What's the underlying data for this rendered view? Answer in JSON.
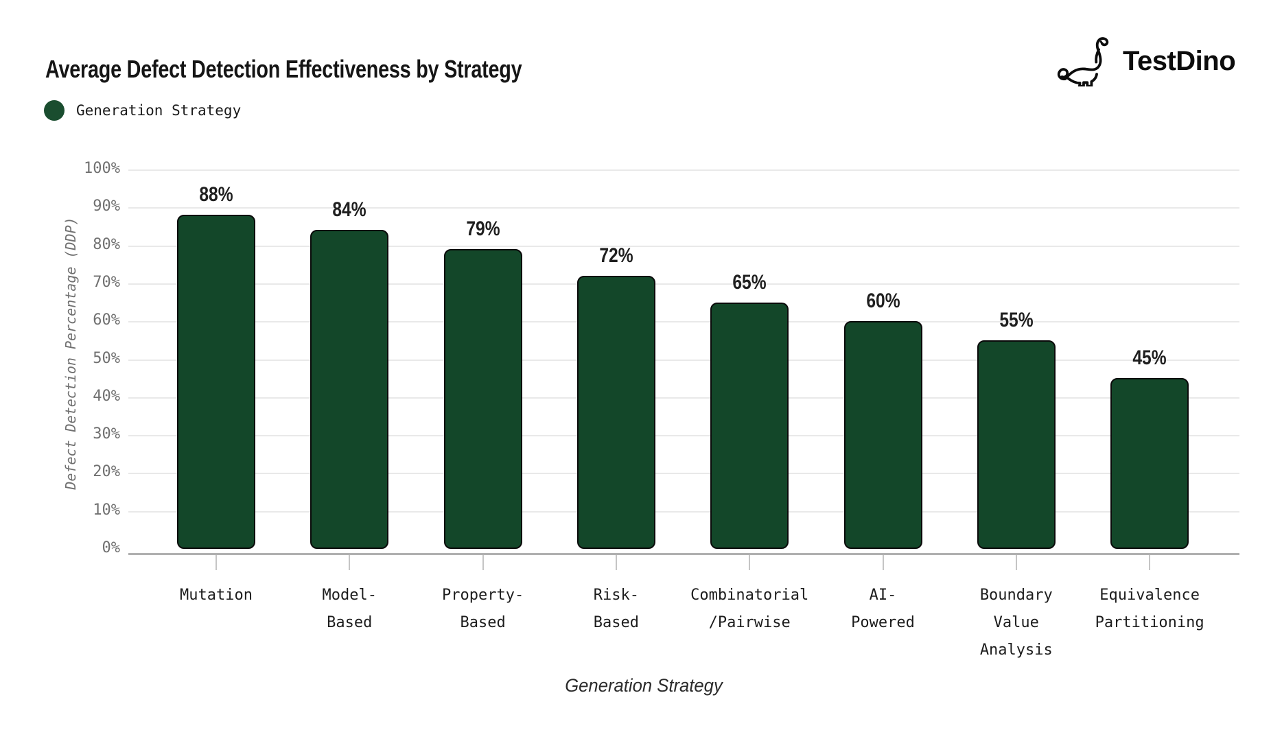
{
  "header": {
    "title": "Average Defect Detection Effectiveness by Strategy",
    "legend": {
      "label": "Generation Strategy",
      "color": "#1a4d2f"
    },
    "logo": {
      "text": "TestDino",
      "icon": "dinosaur-icon"
    }
  },
  "chart_data": {
    "type": "bar",
    "title": "Average Defect Detection Effectiveness by Strategy",
    "series_name": "Generation Strategy",
    "categories": [
      "Mutation",
      "Model-Based",
      "Property-Based",
      "Risk-Based",
      "Combinatorial/Pairwise",
      "AI-Powered",
      "Boundary Value Analysis",
      "Equivalence Partitioning"
    ],
    "category_lines": [
      [
        "Mutation"
      ],
      [
        "Model-",
        "Based"
      ],
      [
        "Property-",
        "Based"
      ],
      [
        "Risk-",
        "Based"
      ],
      [
        "Combinatorial",
        "/Pairwise"
      ],
      [
        "AI-",
        "Powered"
      ],
      [
        "Boundary",
        "Value",
        "Analysis"
      ],
      [
        "Equivalence",
        "Partitioning"
      ]
    ],
    "values": [
      88,
      84,
      79,
      72,
      65,
      60,
      55,
      45
    ],
    "value_labels": [
      "88%",
      "84%",
      "79%",
      "72%",
      "65%",
      "60%",
      "55%",
      "45%"
    ],
    "xlabel": "Generation Strategy",
    "ylabel": "Defect Detection Percentage (DDP)",
    "ylim": [
      0,
      100
    ],
    "ytick_step": 10,
    "ytick_labels": [
      "0%",
      "10%",
      "20%",
      "30%",
      "40%",
      "50%",
      "60%",
      "70%",
      "80%",
      "90%",
      "100%"
    ],
    "grid": true,
    "legend_position": "top-left",
    "bar_color": "#134729",
    "bar_border_color": "#0a0a0a",
    "background": "#ffffff"
  }
}
